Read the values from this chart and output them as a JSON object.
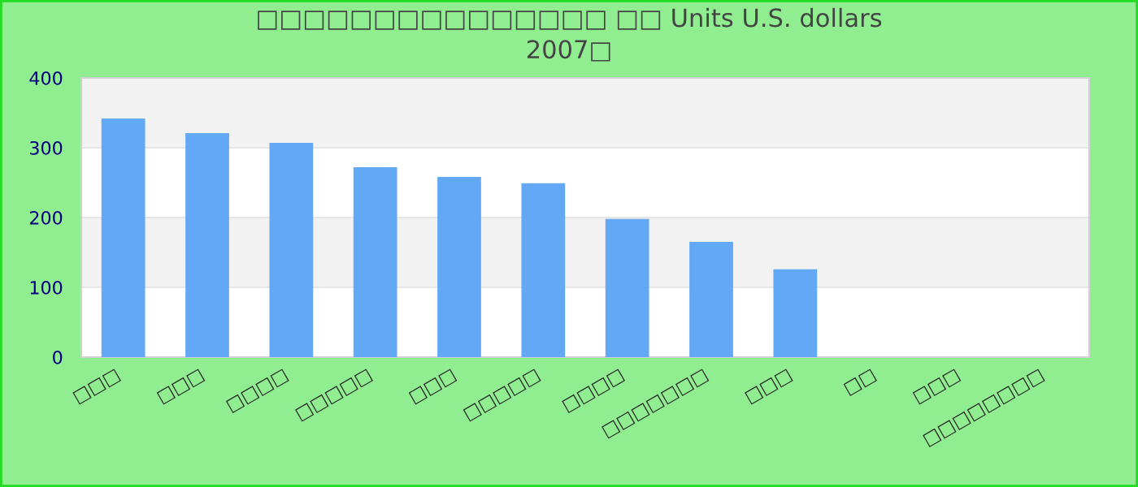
{
  "chart_data": {
    "type": "bar",
    "title": "□□□□□□□□□□□□□□□ □□ Units U.S. dollars\n2007□",
    "categories": [
      "□□□",
      "□□□",
      "□□□□",
      "□□□□□",
      "□□□",
      "□□□□□",
      "□□□□",
      "□□□□□□□",
      "□□□",
      "□□",
      "□□□",
      "□□□□□□□□"
    ],
    "values": [
      342,
      321,
      307,
      272,
      258,
      249,
      198,
      165,
      126,
      null,
      null,
      null
    ],
    "color": "#62a8f4",
    "ylim": [
      0,
      400
    ],
    "yticks": [
      0,
      100,
      200,
      300,
      400
    ],
    "grid": "y"
  }
}
